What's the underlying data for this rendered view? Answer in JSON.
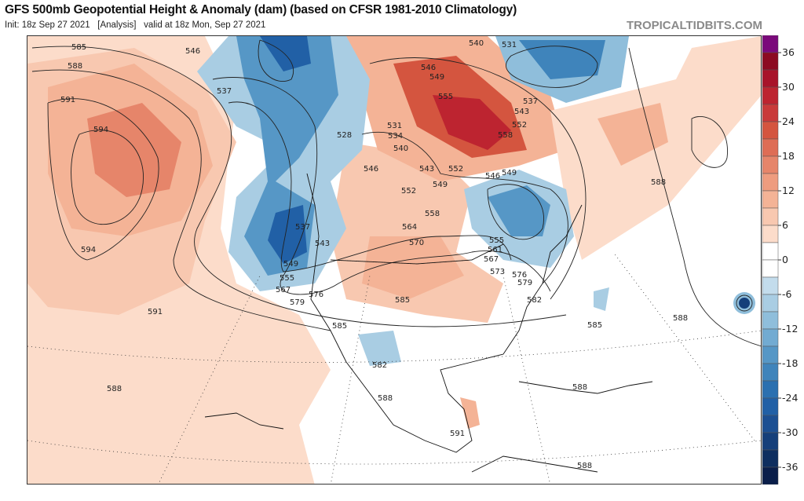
{
  "header": {
    "title": "GFS 500mb Geopotential Height & Anomaly (dam) (based on CFSR 1981-2010 Climatology)",
    "subtitle": "Init: 18z Sep 27 2021   [Analysis]   valid at 18z Mon, Sep 27 2021",
    "brand": "TROPICALTIDBITS.COM"
  },
  "colorbar": {
    "labels": [
      "36",
      "30",
      "24",
      "18",
      "12",
      "6",
      "0",
      "-6",
      "-12",
      "-18",
      "-24",
      "-30",
      "-36"
    ],
    "colors": [
      "#7b0a7b",
      "#8c0b22",
      "#a8132a",
      "#bd2430",
      "#c93a3a",
      "#d4553f",
      "#de6d55",
      "#e6856a",
      "#ee9c7f",
      "#f4b396",
      "#f8c8b0",
      "#fcdcca",
      "#ffffff",
      "#ffffff",
      "#c3dcec",
      "#a9cde3",
      "#8fbedb",
      "#72abd2",
      "#5697c6",
      "#3f84bb",
      "#2b70b0",
      "#2160a6",
      "#1c4f92",
      "#153f7a",
      "#0e2e5f",
      "#0a1e4a"
    ]
  },
  "contour_labels": [
    "585",
    "588",
    "591",
    "594",
    "594",
    "591",
    "588",
    "546",
    "537",
    "528",
    "537",
    "543",
    "549",
    "555",
    "567",
    "579",
    "576",
    "585",
    "582",
    "588",
    "591",
    "588",
    "588",
    "585",
    "588",
    "588",
    "582",
    "579",
    "576",
    "573",
    "567",
    "561",
    "555",
    "570",
    "564",
    "558",
    "552",
    "549",
    "543",
    "546",
    "540",
    "534",
    "531",
    "555",
    "549",
    "546",
    "552",
    "558",
    "543",
    "537",
    "531",
    "540",
    "546",
    "549",
    "552",
    "585"
  ]
}
